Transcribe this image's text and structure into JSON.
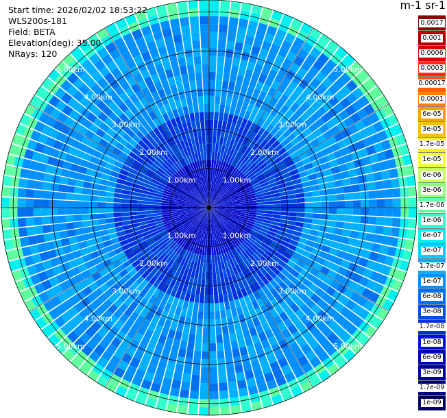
{
  "header": {
    "start_time": "Start time: 2026/02/02 18:53:22",
    "instrument": "WLS200s-181",
    "field": "Field: BETA",
    "elevation": "Elevation(deg): 35.00",
    "nrays": "NRays: 120"
  },
  "colorbar": {
    "title": "m-1 sr-1",
    "levels": [
      "0.0017",
      "0.001",
      "0.0006",
      "0.0003",
      "0.00017",
      "0.0001",
      "6e-05",
      "3e-05",
      "1.7e-05",
      "1e-05",
      "6e-06",
      "3e-06",
      "1.7e-06",
      "1e-06",
      "6e-07",
      "3e-07",
      "1.7e-07",
      "1e-07",
      "6e-08",
      "3e-08",
      "1.7e-08",
      "1e-08",
      "6e-09",
      "3e-09",
      "1.7e-09",
      "1e-09"
    ],
    "colors": [
      "#8b0000",
      "#b00000",
      "#d80000",
      "#ff2a00",
      "#ff5a00",
      "#ff8000",
      "#ffa000",
      "#ffbf00",
      "#ffee22",
      "#f2ff40",
      "#c8ff60",
      "#90ff80",
      "#60ffa0",
      "#30ffd0",
      "#00f0f0",
      "#00d0ff",
      "#00b0ff",
      "#0090ff",
      "#0070f0",
      "#0050e0",
      "#0030e0",
      "#0010d0",
      "#0000c0",
      "#0000a0",
      "#000080",
      "#000060"
    ]
  },
  "chart_data": {
    "type": "heatmap",
    "projection": "polar (PPI)",
    "field": "BETA",
    "elevation_deg": 35.0,
    "nrays": 120,
    "range_max_km": 5.3,
    "range_rings_km": [
      1,
      2,
      3,
      4,
      5
    ],
    "ring_labels": [
      "1.00km",
      "2.00km",
      "3.00km",
      "4.00km",
      "5.00km"
    ],
    "background_level": "1e-07",
    "near_range_level": "1e-08",
    "outer_ring_level": "1.7e-06",
    "grid": true
  }
}
